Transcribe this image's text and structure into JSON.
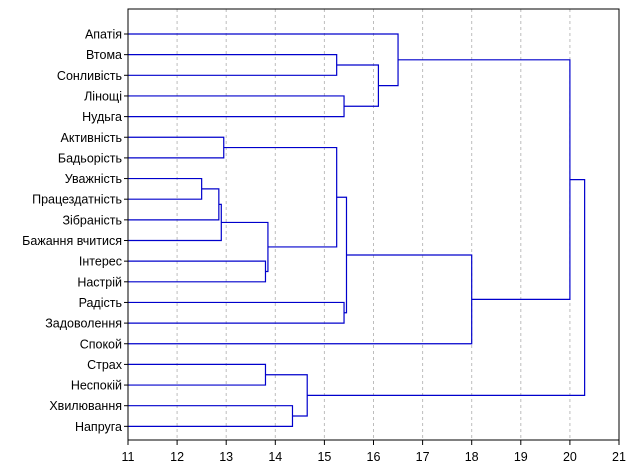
{
  "chart_data": {
    "type": "dendrogram",
    "title": "",
    "xlabel": "",
    "ylabel": "",
    "xlim": [
      11,
      21
    ],
    "x_ticks": [
      "11",
      "12",
      "13",
      "14",
      "15",
      "16",
      "17",
      "18",
      "19",
      "20",
      "21"
    ],
    "grid": "vertical dashed lines at every integer x",
    "leaves": [
      "Апатія",
      "Втома",
      "Сонливість",
      "Лінощі",
      "Нудьга",
      "Активність",
      "Бадьорість",
      "Уважність",
      "Працездатність",
      "Зібраність",
      "Бажання вчитися",
      "Інтерес",
      "Настрій",
      "Радість",
      "Задоволення",
      "Спокой",
      "Страх",
      "Неспокій",
      "Хвилювання",
      "Напруга"
    ],
    "merges": [
      {
        "join": [
          "L7",
          "L8"
        ],
        "height": 12.5
      },
      {
        "join": [
          "M0",
          "L9"
        ],
        "height": 12.85
      },
      {
        "join": [
          "M1",
          "L10"
        ],
        "height": 12.9
      },
      {
        "join": [
          "L5",
          "L6"
        ],
        "height": 12.95
      },
      {
        "join": [
          "L11",
          "L12"
        ],
        "height": 13.8
      },
      {
        "join": [
          "M2",
          "M4"
        ],
        "height": 13.85
      },
      {
        "join": [
          "L16",
          "L17"
        ],
        "height": 13.8
      },
      {
        "join": [
          "L18",
          "L19"
        ],
        "height": 14.35
      },
      {
        "join": [
          "M6",
          "M7"
        ],
        "height": 14.65
      },
      {
        "join": [
          "L1",
          "L2"
        ],
        "height": 15.25
      },
      {
        "join": [
          "M3",
          "M5"
        ],
        "height": 15.25
      },
      {
        "join": [
          "L13",
          "L14"
        ],
        "height": 15.4
      },
      {
        "join": [
          "L3",
          "L4"
        ],
        "height": 15.4
      },
      {
        "join": [
          "M10",
          "M11"
        ],
        "height": 15.45
      },
      {
        "join": [
          "M9",
          "M12"
        ],
        "height": 16.1
      },
      {
        "join": [
          "L0",
          "M14"
        ],
        "height": 16.5
      },
      {
        "join": [
          "M13",
          "L15"
        ],
        "height": 18.0
      },
      {
        "join": [
          "M15",
          "M16"
        ],
        "height": 20.0
      },
      {
        "join": [
          "M17",
          "M8"
        ],
        "height": 20.3
      }
    ],
    "line_color": "#0000cc",
    "axis_color": "#000000",
    "grid_color": "#bdbdbd"
  }
}
